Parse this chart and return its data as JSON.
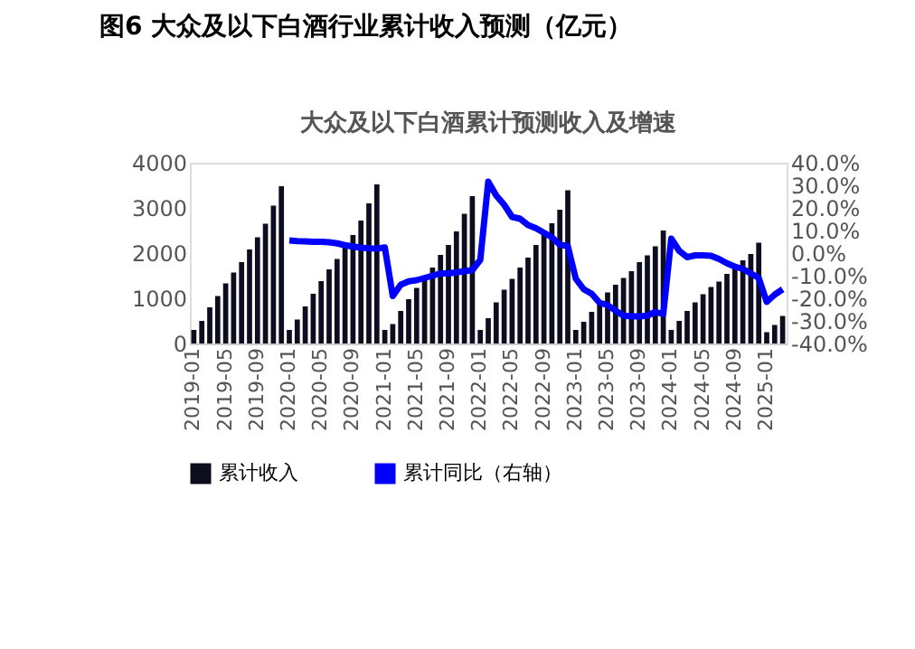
{
  "chart_data": {
    "type": "bar",
    "title": "图6   大众及以下白酒行业累计收入预测（亿元）",
    "subtitle": "大众及以下白酒累计预测收入及增速",
    "categories": [
      "2019-01",
      null,
      null,
      null,
      "2019-05",
      null,
      null,
      null,
      "2019-09",
      null,
      null,
      null,
      "2020-01",
      null,
      null,
      null,
      "2020-05",
      null,
      null,
      null,
      "2020-09",
      null,
      null,
      null,
      "2021-01",
      null,
      null,
      null,
      "2021-05",
      null,
      null,
      null,
      "2021-09",
      null,
      null,
      null,
      "2022-01",
      null,
      null,
      null,
      "2022-05",
      null,
      null,
      null,
      "2022-09",
      null,
      null,
      null,
      "2023-01",
      null,
      null,
      null,
      "2023-05",
      null,
      null,
      null,
      "2023-09",
      null,
      null,
      null,
      "2024-01",
      null,
      null,
      null,
      "2024-05",
      null,
      null,
      null,
      "2024-09",
      null,
      null,
      null,
      "2025-01",
      null,
      null
    ],
    "series": [
      {
        "name": "累计收入",
        "color": "#0d0d1f",
        "values": [
          300,
          500,
          800,
          1050,
          1330,
          1570,
          1800,
          2080,
          2350,
          2650,
          3050,
          3480,
          300,
          530,
          820,
          1100,
          1380,
          1640,
          1870,
          2120,
          2400,
          2720,
          3100,
          3520,
          300,
          430,
          720,
          980,
          1230,
          1450,
          1680,
          1960,
          2180,
          2480,
          2870,
          3260,
          300,
          560,
          910,
          1190,
          1430,
          1680,
          1900,
          2180,
          2420,
          2660,
          2960,
          3390,
          300,
          480,
          700,
          950,
          1130,
          1300,
          1450,
          1600,
          1800,
          1950,
          2150,
          2500,
          300,
          500,
          720,
          910,
          1090,
          1250,
          1370,
          1540,
          1700,
          1840,
          1980,
          2230,
          250,
          410,
          610
        ]
      },
      {
        "name": "累计同比（右轴）",
        "type": "line",
        "axis": "y2",
        "color": "#0000ff",
        "values": [
          null,
          null,
          null,
          null,
          null,
          null,
          null,
          null,
          null,
          null,
          null,
          null,
          5.6,
          5.3,
          5.2,
          5.0,
          5.0,
          4.8,
          4.3,
          3.5,
          2.9,
          2.4,
          2.1,
          2.0,
          2.5,
          -19,
          -14,
          -12.5,
          -12,
          -11,
          -10,
          -9,
          -9,
          -8.5,
          -8,
          -7.5,
          -3,
          31.6,
          25.5,
          21.4,
          16,
          15.2,
          12.4,
          11,
          9,
          7,
          3.7,
          3.1,
          -11.3,
          -16,
          -18,
          -22,
          -23,
          -25.5,
          -27.7,
          -28,
          -28,
          -27.7,
          -26,
          -27,
          6.4,
          1,
          -1.8,
          -1,
          -1,
          -1.2,
          -2.6,
          -4.5,
          -6,
          -7,
          -9,
          -11,
          -21.6,
          -18.4,
          -16
        ]
      }
    ],
    "ylim": [
      0,
      4000
    ],
    "yticks": [
      0,
      1000,
      2000,
      3000,
      4000
    ],
    "y2lim": [
      -40,
      40
    ],
    "y2ticks": [
      {
        "value": 40,
        "label": "40.0%"
      },
      {
        "value": 30,
        "label": "30.0%"
      },
      {
        "value": 20,
        "label": "20.0%"
      },
      {
        "value": 10,
        "label": "10.0%"
      },
      {
        "value": 0,
        "label": "0.0%"
      },
      {
        "value": -10,
        "label": "-10.0%"
      },
      {
        "value": -20,
        "label": "-20.0%"
      },
      {
        "value": -30,
        "label": "-30.0%"
      },
      {
        "value": -40,
        "label": "-40.0%"
      }
    ],
    "grid": false,
    "legend": "bottom",
    "marker": "none",
    "line_style": "solid"
  }
}
